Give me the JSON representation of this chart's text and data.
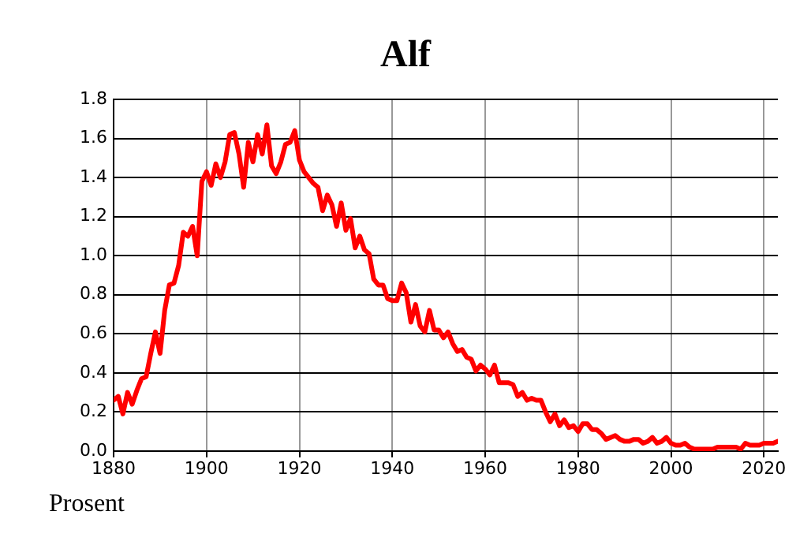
{
  "chart_data": {
    "type": "line",
    "title": "Alf",
    "ylabel": "Prosent",
    "x": [
      1880,
      1881,
      1882,
      1883,
      1884,
      1885,
      1886,
      1887,
      1888,
      1889,
      1890,
      1891,
      1892,
      1893,
      1894,
      1895,
      1896,
      1897,
      1898,
      1899,
      1900,
      1901,
      1902,
      1903,
      1904,
      1905,
      1906,
      1907,
      1908,
      1909,
      1910,
      1911,
      1912,
      1913,
      1914,
      1915,
      1916,
      1917,
      1918,
      1919,
      1920,
      1921,
      1922,
      1923,
      1924,
      1925,
      1926,
      1927,
      1928,
      1929,
      1930,
      1931,
      1932,
      1933,
      1934,
      1935,
      1936,
      1937,
      1938,
      1939,
      1940,
      1941,
      1942,
      1943,
      1944,
      1945,
      1946,
      1947,
      1948,
      1949,
      1950,
      1951,
      1952,
      1953,
      1954,
      1955,
      1956,
      1957,
      1958,
      1959,
      1960,
      1961,
      1962,
      1963,
      1964,
      1965,
      1966,
      1967,
      1968,
      1969,
      1970,
      1971,
      1972,
      1973,
      1974,
      1975,
      1976,
      1977,
      1978,
      1979,
      1980,
      1981,
      1982,
      1983,
      1984,
      1985,
      1986,
      1987,
      1988,
      1989,
      1990,
      1991,
      1992,
      1993,
      1994,
      1995,
      1996,
      1997,
      1998,
      1999,
      2000,
      2001,
      2002,
      2003,
      2004,
      2005,
      2006,
      2007,
      2008,
      2009,
      2010,
      2011,
      2012,
      2013,
      2014,
      2015,
      2016,
      2017,
      2018,
      2019,
      2020,
      2021,
      2022,
      2023
    ],
    "series": [
      {
        "color": "#ff0000",
        "values": [
          0.26,
          0.28,
          0.19,
          0.3,
          0.24,
          0.31,
          0.37,
          0.38,
          0.5,
          0.61,
          0.5,
          0.72,
          0.85,
          0.86,
          0.95,
          1.12,
          1.1,
          1.15,
          1.0,
          1.38,
          1.43,
          1.36,
          1.47,
          1.4,
          1.48,
          1.62,
          1.63,
          1.52,
          1.35,
          1.58,
          1.48,
          1.62,
          1.52,
          1.67,
          1.46,
          1.42,
          1.48,
          1.57,
          1.58,
          1.64,
          1.49,
          1.43,
          1.4,
          1.37,
          1.35,
          1.23,
          1.31,
          1.26,
          1.15,
          1.27,
          1.13,
          1.19,
          1.04,
          1.1,
          1.03,
          1.01,
          0.88,
          0.85,
          0.85,
          0.78,
          0.77,
          0.77,
          0.86,
          0.81,
          0.66,
          0.75,
          0.64,
          0.61,
          0.72,
          0.62,
          0.62,
          0.58,
          0.61,
          0.55,
          0.51,
          0.52,
          0.48,
          0.47,
          0.41,
          0.44,
          0.42,
          0.39,
          0.44,
          0.35,
          0.35,
          0.35,
          0.34,
          0.28,
          0.3,
          0.26,
          0.27,
          0.26,
          0.26,
          0.2,
          0.15,
          0.19,
          0.13,
          0.16,
          0.12,
          0.13,
          0.1,
          0.14,
          0.14,
          0.11,
          0.11,
          0.09,
          0.06,
          0.07,
          0.08,
          0.06,
          0.05,
          0.05,
          0.06,
          0.06,
          0.04,
          0.05,
          0.07,
          0.04,
          0.05,
          0.07,
          0.04,
          0.03,
          0.03,
          0.04,
          0.02,
          0.01,
          0.01,
          0.01,
          0.01,
          0.01,
          0.02,
          0.02,
          0.02,
          0.02,
          0.02,
          0.01,
          0.04,
          0.03,
          0.03,
          0.03,
          0.04,
          0.04,
          0.04,
          0.05
        ]
      }
    ],
    "xlim": [
      1880,
      2023
    ],
    "xticks": [
      1880,
      1900,
      1920,
      1940,
      1960,
      1980,
      2000,
      2020
    ],
    "ylim": [
      0,
      1.8
    ],
    "yticks": [
      {
        "value": 0,
        "label": "0.0"
      },
      {
        "value": 0.2,
        "label": "0.2"
      },
      {
        "value": 0.4,
        "label": "0.4"
      },
      {
        "value": 0.6,
        "label": "0.6"
      },
      {
        "value": 0.8,
        "label": "0.8"
      },
      {
        "value": 1,
        "label": "1.0"
      },
      {
        "value": 1.2,
        "label": "1.2"
      },
      {
        "value": 1.4,
        "label": "1.4"
      },
      {
        "value": 1.6,
        "label": "1.6"
      },
      {
        "value": 1.8,
        "label": "1.8"
      }
    ],
    "grid": true,
    "marker": "none",
    "line_style": "solid",
    "legend": false
  }
}
